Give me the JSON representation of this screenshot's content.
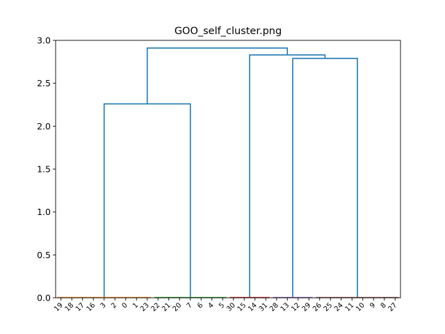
{
  "chart_data": {
    "type": "dendrogram",
    "title": "GOO_self_cluster.png",
    "xlabel": "",
    "ylabel": "",
    "ylim": [
      0.0,
      3.0
    ],
    "y_ticks": [
      "0.0",
      "0.5",
      "1.0",
      "1.5",
      "2.0",
      "2.5",
      "3.0"
    ],
    "leaf_labels": [
      "19",
      "18",
      "17",
      "16",
      "3",
      "2",
      "0",
      "1",
      "23",
      "22",
      "21",
      "20",
      "7",
      "6",
      "4",
      "5",
      "30",
      "15",
      "14",
      "31",
      "28",
      "13",
      "12",
      "29",
      "26",
      "25",
      "24",
      "11",
      "10",
      "9",
      "8",
      "27"
    ],
    "above_threshold_color": "#1f77b4",
    "clusters": [
      {
        "start": 0,
        "end": 8,
        "color": "#ff7f0e"
      },
      {
        "start": 9,
        "end": 15,
        "color": "#2ca02c"
      },
      {
        "start": 16,
        "end": 19,
        "color": "#d62728"
      },
      {
        "start": 20,
        "end": 23,
        "color": "#9467bd"
      },
      {
        "start": 24,
        "end": 31,
        "color": "#8c564b"
      }
    ],
    "merges": [
      {
        "left": "cluster-0",
        "right": "cluster-1",
        "height": 2.26,
        "id": "m1"
      },
      {
        "left": "cluster-3",
        "right": "cluster-4",
        "height": 2.79,
        "id": "m2"
      },
      {
        "left": "cluster-2",
        "right": "m2",
        "height": 2.83,
        "id": "m3"
      },
      {
        "left": "m1",
        "right": "m3",
        "height": 2.91,
        "id": "m4"
      }
    ]
  }
}
